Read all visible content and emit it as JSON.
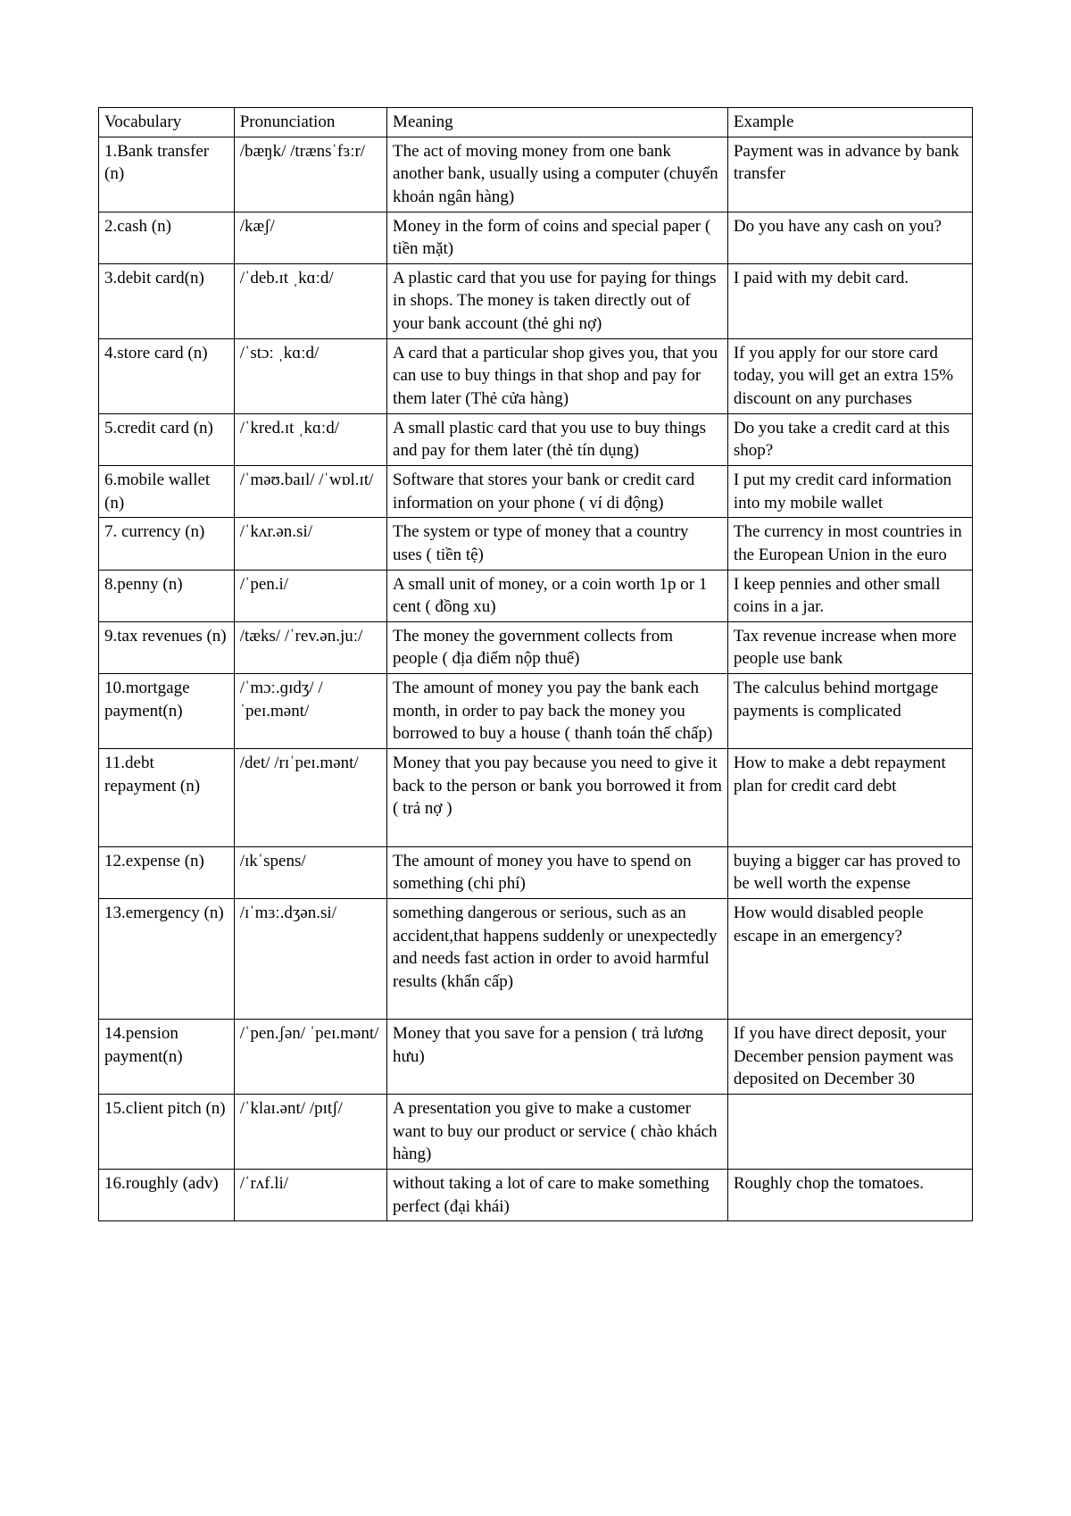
{
  "table": {
    "columns": [
      "Vocabulary",
      "Pronunciation",
      "Meaning",
      "Example"
    ],
    "column_widths_pct": [
      15.5,
      17.5,
      39,
      28
    ],
    "font_family": "Times New Roman",
    "font_size_pt": 14,
    "border_color": "#000000",
    "background_color": "#ffffff",
    "text_color": "#000000",
    "rows": [
      {
        "vocab": "1.Bank transfer (n)",
        "pron": "/bæŋk/ /trænsˈfɜːr/",
        "meaning": "The act of moving money from one bank another bank, usually using a computer (chuyển khoản ngân hàng)",
        "example": "Payment was in advance by bank transfer"
      },
      {
        "vocab": "2.cash (n)",
        "pron": "/kæʃ/",
        "meaning": "Money in the form of coins and special paper ( tiền mặt)",
        "example": "Do you have any cash on you?"
      },
      {
        "vocab": "3.debit card(n)",
        "pron": "/ˈdeb.ɪt ˌkɑːd/",
        "meaning": " A plastic card that you use for paying for things in shops. The money is taken directly out of your bank account (thẻ ghi nợ)",
        "example": "I paid with my debit card."
      },
      {
        "vocab": "4.store card (n)",
        "pron": "/ˈstɔː ˌkɑːd/",
        "meaning": "A card that a particular shop gives you, that you can use to buy things in that shop and pay for them later (Thẻ cửa hàng)",
        "example": "If you apply for our store card today, you will get an extra 15% discount on any purchases"
      },
      {
        "vocab": "5.credit card (n)",
        "pron": "/ˈkred.ɪt ˌkɑːd/",
        "meaning": "A small plastic card that you use to buy things and pay for them later (thẻ tín dụng)",
        "example": "Do you take a credit card at this shop?"
      },
      {
        "vocab": "6.mobile wallet (n)",
        "pron": "/ˈməʊ.baɪl/ /ˈwɒl.ɪt/",
        "meaning": "Software that stores your bank or credit card information on your phone ( ví di động)",
        "example": "I put my credit card information into my mobile wallet"
      },
      {
        "vocab": "7. currency (n)",
        "pron": "/ˈkʌr.ən.si/",
        "meaning": "The system or type of money that a country uses ( tiền tệ)",
        "example": "The currency in most countries in the European Union in the euro"
      },
      {
        "vocab": "8.penny (n)",
        "pron": "/ˈpen.i/",
        "meaning": "A small unit of money, or a coin worth 1p or 1 cent ( đồng xu)",
        "example": "I keep pennies and other small coins in a jar."
      },
      {
        "vocab": "9.tax revenues (n)",
        "pron": "/tæks/ /ˈrev.ən.juː/",
        "meaning": "The money the government collects from people ( địa điểm nộp thuế)",
        "example": "  Tax revenue increase when more people use bank"
      },
      {
        "vocab": "10.mortgage payment(n)",
        "pron": "/ˈmɔː.ɡɪdʒ/ /ˈpeɪ.mənt/",
        "meaning": "The amount of money you pay the bank each month, in order to pay back the money you borrowed to buy a house ( thanh toán thế chấp)",
        "example": "The calculus behind mortgage payments is complicated"
      },
      {
        "vocab": "11.debt repayment (n)",
        "pron": "/det/  /rɪˈpeɪ.mənt/",
        "meaning": "Money that you pay because you need to give it back to the person or bank you borrowed it from ( trả nợ )\n\n",
        "example": "How to make a debt repayment plan for credit card debt"
      },
      {
        "vocab": "12.expense (n)",
        "pron": "/ɪkˈspens/",
        "meaning": "The amount of money you have to spend on something (chi phí)",
        "example": "buying a bigger car has proved to be well worth the expense"
      },
      {
        "vocab": "13.emergency (n)",
        "pron": "/ɪˈmɜː.dʒən.si/",
        "meaning": "something dangerous or serious, such as an accident,that happens suddenly or unexpectedly and needs fast action in order to avoid harmful results (khẩn cấp)\n\n",
        "example": "How would disabled people escape in an emergency?"
      },
      {
        "vocab": "14.pension payment(n)",
        "pron": "/ˈpen.ʃən/ ˈpeɪ.mənt/",
        "meaning": "Money that you save for a pension ( trả lương hưu)",
        "example": "If you have direct deposit, your December pension payment was deposited on December 30"
      },
      {
        "vocab": "15.client pitch (n)",
        "pron": "/ˈklaɪ.ənt/ /pɪtʃ/",
        "meaning": "A presentation you give to make a customer want to buy our product or service ( chào khách hàng)",
        "example": ""
      },
      {
        "vocab": "16.roughly (adv)",
        "pron": "/ˈrʌf.li/",
        "meaning": "without taking a lot of care to make something perfect (đại khái)",
        "example": "Roughly chop the tomatoes."
      }
    ]
  }
}
